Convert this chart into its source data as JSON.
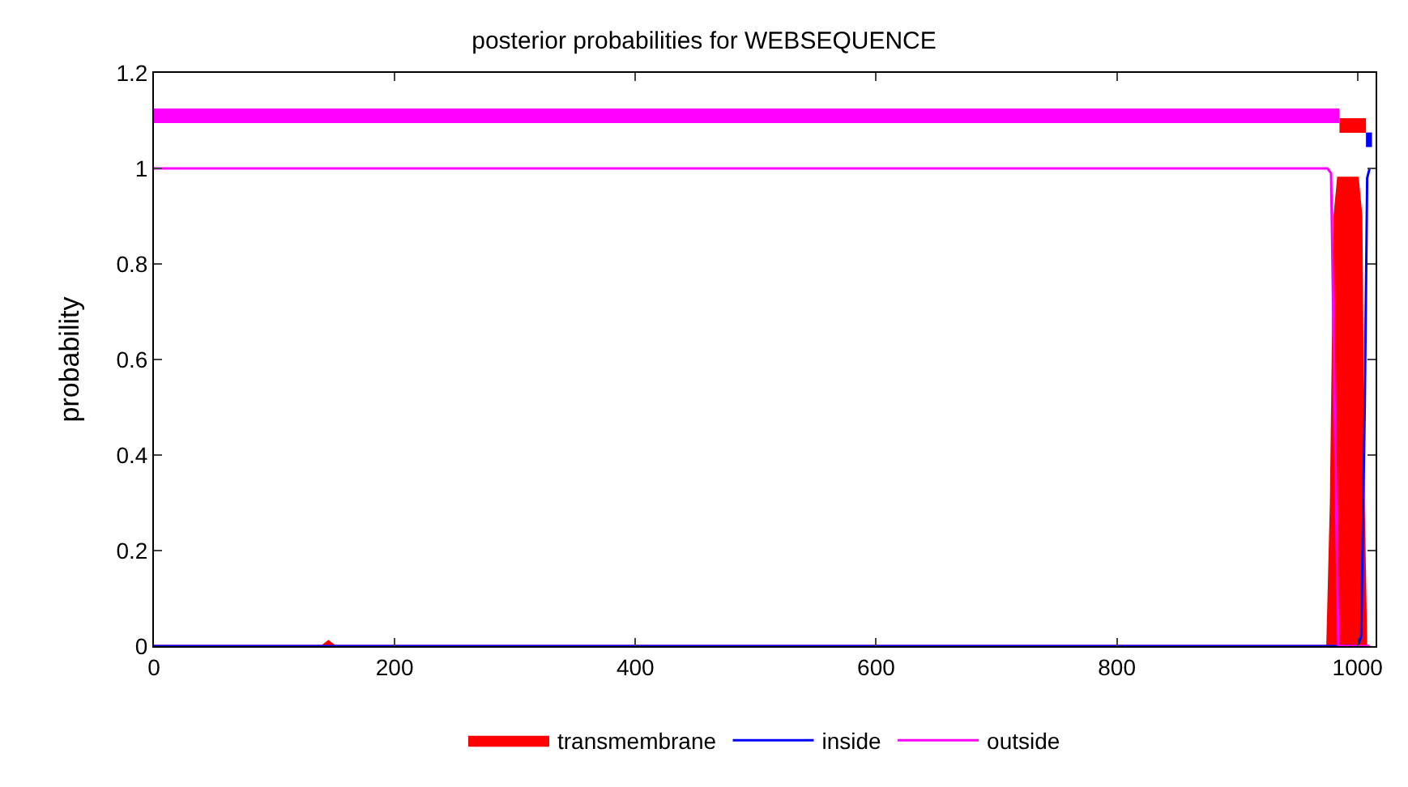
{
  "chart_data": {
    "type": "line",
    "title": "posterior probabilities for WEBSEQUENCE",
    "ylabel": "probability",
    "xlim": [
      0,
      1015
    ],
    "xticks": [
      0,
      200,
      400,
      600,
      800,
      1000
    ],
    "ylim": [
      0,
      1.2
    ],
    "yticks": [
      0,
      0.2,
      0.4,
      0.6,
      0.8,
      1,
      1.2
    ],
    "grid": false,
    "legend": "bottom",
    "marker": "none",
    "line_style": "solid",
    "series": [
      {
        "name": "transmembrane",
        "color": "#ff0000",
        "type": "area",
        "x": [
          0,
          140,
          145,
          150,
          155,
          975,
          978,
          981,
          984,
          1000,
          1003,
          1005,
          1007,
          1010
        ],
        "values": [
          0,
          0,
          0.01,
          0,
          0,
          0,
          0.3,
          0.9,
          0.98,
          0.98,
          0.9,
          0.3,
          0,
          0
        ]
      },
      {
        "name": "inside",
        "color": "#0000ff",
        "x": [
          0,
          1000,
          1003,
          1006,
          1008,
          1010
        ],
        "values": [
          0,
          0,
          0.02,
          0.5,
          0.98,
          1
        ]
      },
      {
        "name": "outside",
        "color": "#ff00ff",
        "x": [
          0,
          975,
          978,
          981,
          984,
          1005,
          1010
        ],
        "values": [
          1,
          1,
          0.99,
          0.5,
          0,
          0,
          0
        ]
      },
      {
        "color": "#ff00ff",
        "x": [
          0,
          985
        ],
        "values": [
          1.11,
          1.11
        ]
      },
      {
        "color": "#ff0000",
        "x": [
          985,
          1007
        ],
        "values": [
          1.09,
          1.09
        ]
      },
      {
        "color": "#0000ff",
        "x": [
          1007,
          1012
        ],
        "values": [
          1.06,
          1.06
        ]
      }
    ]
  }
}
